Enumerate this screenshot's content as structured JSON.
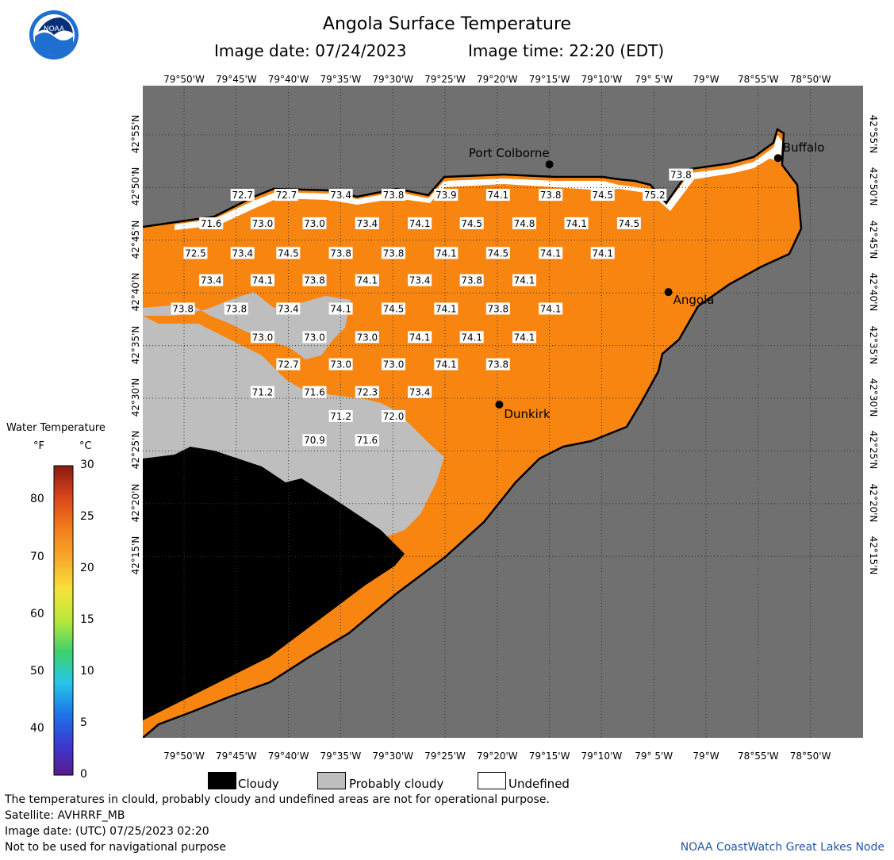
{
  "header": {
    "title": "Angola Surface Temperature",
    "image_date": "Image date: 07/24/2023",
    "image_time": "Image time: 22:20 (EDT)"
  },
  "logo": {
    "text": "NOAA",
    "icon": "noaa-logo-icon"
  },
  "axes": {
    "lon_labels": [
      "79°50'W",
      "79°45'W",
      "79°40'W",
      "79°35'W",
      "79°30'W",
      "79°25'W",
      "79°20'W",
      "79°15'W",
      "79°10'W",
      "79° 5'W",
      "79°W",
      "78°55'W",
      "78°50'W"
    ],
    "lat_labels": [
      "42°55'N",
      "42°50'N",
      "42°45'N",
      "42°40'N",
      "42°35'N",
      "42°30'N",
      "42°25'N",
      "42°20'N",
      "42°15'N"
    ]
  },
  "colors": {
    "land": "#707070",
    "warm_water": "#f98511",
    "cloudy": "#000000",
    "probably_cloudy": "#bebebe",
    "undefined": "#ffffff",
    "credit": "#2456a4"
  },
  "places": [
    {
      "name": "Port Colborne",
      "lon": -79.25,
      "lat": 42.87
    },
    {
      "name": "Buffalo",
      "lon": -78.885,
      "lat": 42.88
    },
    {
      "name": "Angola",
      "lon": -79.06,
      "lat": 42.668
    },
    {
      "name": "Dunkirk",
      "lon": -79.33,
      "lat": 42.49
    }
  ],
  "temperature_labels": [
    {
      "v": "72.7",
      "lon": -79.74,
      "lat": 42.82
    },
    {
      "v": "72.7",
      "lon": -79.67,
      "lat": 42.82
    },
    {
      "v": "73.4",
      "lon": -79.583,
      "lat": 42.82
    },
    {
      "v": "73.8",
      "lon": -79.499,
      "lat": 42.82
    },
    {
      "v": "73.9",
      "lon": -79.415,
      "lat": 42.82
    },
    {
      "v": "74.1",
      "lon": -79.332,
      "lat": 42.82
    },
    {
      "v": "73.8",
      "lon": -79.248,
      "lat": 42.82
    },
    {
      "v": "74.5",
      "lon": -79.165,
      "lat": 42.82
    },
    {
      "v": "75.2",
      "lon": -79.082,
      "lat": 42.82
    },
    {
      "v": "73.8",
      "lon": -79.04,
      "lat": 42.852
    },
    {
      "v": "71.6",
      "lon": -79.79,
      "lat": 42.775
    },
    {
      "v": "73.0",
      "lon": -79.708,
      "lat": 42.775
    },
    {
      "v": "73.0",
      "lon": -79.625,
      "lat": 42.775
    },
    {
      "v": "73.4",
      "lon": -79.541,
      "lat": 42.775
    },
    {
      "v": "74.1",
      "lon": -79.457,
      "lat": 42.775
    },
    {
      "v": "74.5",
      "lon": -79.374,
      "lat": 42.775
    },
    {
      "v": "74.8",
      "lon": -79.29,
      "lat": 42.775
    },
    {
      "v": "74.1",
      "lon": -79.207,
      "lat": 42.775
    },
    {
      "v": "74.5",
      "lon": -79.123,
      "lat": 42.775
    },
    {
      "v": "72.5",
      "lon": -79.815,
      "lat": 42.728
    },
    {
      "v": "73.4",
      "lon": -79.74,
      "lat": 42.728
    },
    {
      "v": "74.5",
      "lon": -79.667,
      "lat": 42.728
    },
    {
      "v": "73.8",
      "lon": -79.583,
      "lat": 42.728
    },
    {
      "v": "73.8",
      "lon": -79.499,
      "lat": 42.728
    },
    {
      "v": "74.1",
      "lon": -79.415,
      "lat": 42.728
    },
    {
      "v": "74.5",
      "lon": -79.332,
      "lat": 42.728
    },
    {
      "v": "74.1",
      "lon": -79.248,
      "lat": 42.728
    },
    {
      "v": "74.1",
      "lon": -79.165,
      "lat": 42.728
    },
    {
      "v": "73.4",
      "lon": -79.79,
      "lat": 42.685
    },
    {
      "v": "74.1",
      "lon": -79.708,
      "lat": 42.685
    },
    {
      "v": "73.8",
      "lon": -79.625,
      "lat": 42.685
    },
    {
      "v": "74.1",
      "lon": -79.541,
      "lat": 42.685
    },
    {
      "v": "73.4",
      "lon": -79.457,
      "lat": 42.685
    },
    {
      "v": "73.8",
      "lon": -79.374,
      "lat": 42.685
    },
    {
      "v": "74.1",
      "lon": -79.29,
      "lat": 42.685
    },
    {
      "v": "73.8",
      "lon": -79.835,
      "lat": 42.64
    },
    {
      "v": "73.8",
      "lon": -79.75,
      "lat": 42.64
    },
    {
      "v": "73.4",
      "lon": -79.667,
      "lat": 42.64
    },
    {
      "v": "74.1",
      "lon": -79.583,
      "lat": 42.64
    },
    {
      "v": "74.5",
      "lon": -79.499,
      "lat": 42.64
    },
    {
      "v": "74.1",
      "lon": -79.415,
      "lat": 42.64
    },
    {
      "v": "73.8",
      "lon": -79.332,
      "lat": 42.64
    },
    {
      "v": "74.1",
      "lon": -79.248,
      "lat": 42.64
    },
    {
      "v": "73.0",
      "lon": -79.708,
      "lat": 42.595
    },
    {
      "v": "73.0",
      "lon": -79.625,
      "lat": 42.595
    },
    {
      "v": "73.0",
      "lon": -79.541,
      "lat": 42.595
    },
    {
      "v": "74.1",
      "lon": -79.457,
      "lat": 42.595
    },
    {
      "v": "74.1",
      "lon": -79.374,
      "lat": 42.595
    },
    {
      "v": "74.1",
      "lon": -79.29,
      "lat": 42.595
    },
    {
      "v": "72.7",
      "lon": -79.667,
      "lat": 42.552
    },
    {
      "v": "73.0",
      "lon": -79.583,
      "lat": 42.552
    },
    {
      "v": "73.0",
      "lon": -79.499,
      "lat": 42.552
    },
    {
      "v": "74.1",
      "lon": -79.415,
      "lat": 42.552
    },
    {
      "v": "73.8",
      "lon": -79.332,
      "lat": 42.552
    },
    {
      "v": "71.2",
      "lon": -79.708,
      "lat": 42.508
    },
    {
      "v": "71.6",
      "lon": -79.625,
      "lat": 42.508
    },
    {
      "v": "72.3",
      "lon": -79.541,
      "lat": 42.508
    },
    {
      "v": "73.4",
      "lon": -79.457,
      "lat": 42.508
    },
    {
      "v": "71.2",
      "lon": -79.583,
      "lat": 42.47
    },
    {
      "v": "72.0",
      "lon": -79.499,
      "lat": 42.47
    },
    {
      "v": "70.9",
      "lon": -79.625,
      "lat": 42.432
    },
    {
      "v": "71.6",
      "lon": -79.541,
      "lat": 42.432
    }
  ],
  "legend": {
    "title": "Water Temperature",
    "unit_f": "°F",
    "unit_c": "°C",
    "f_ticks": [
      "40",
      "50",
      "60",
      "70",
      "80"
    ],
    "c_ticks": [
      "0",
      "5",
      "10",
      "15",
      "20",
      "25",
      "30"
    ],
    "gradient": [
      "#5a1a8c",
      "#3a3ad0",
      "#1b78e8",
      "#27c6e8",
      "#3fd16b",
      "#b9e83a",
      "#f7e23a",
      "#f9a92b",
      "#f27c1c",
      "#d9441b",
      "#8a1b10"
    ]
  },
  "key": {
    "cloudy": "Cloudy",
    "probably_cloudy": "Probably cloudy",
    "undefined": "Undefined"
  },
  "footer": {
    "disclaimer": "The temperatures in clould, probably cloudy and undefined areas are not for operational purpose.",
    "satellite": "Satellite: AVHRRF_MB",
    "utc_date": "Image date: (UTC) 07/25/2023  02:20",
    "nav_warning": "Not to be used for navigational purpose",
    "credit": "NOAA CoastWatch Great Lakes Node"
  }
}
